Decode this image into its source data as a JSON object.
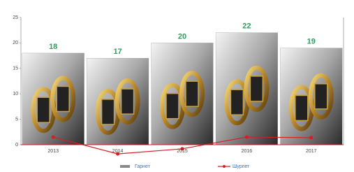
{
  "chart_data": {
    "type": "bar",
    "categories": [
      "2013",
      "2014",
      "2015",
      "2016",
      "2017"
    ],
    "series": [
      {
        "name": "Гарнет",
        "color": "#8a8a8a",
        "values": [
          18,
          17,
          20,
          22,
          19
        ],
        "label_color": "#2e9e5b"
      },
      {
        "name": "Шурпет",
        "type": "line",
        "color": "#d42020",
        "values": [
          1.5,
          -1.8,
          -0.8,
          1.5,
          1.4
        ]
      }
    ],
    "ylim": [
      0,
      25
    ],
    "yticks": [
      0,
      5,
      10,
      15,
      20,
      25
    ],
    "grid": false
  }
}
